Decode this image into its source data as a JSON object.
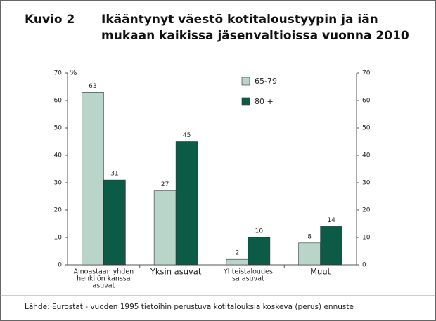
{
  "chart_data": {
    "type": "bar",
    "figure_label": "Kuvio 2",
    "title": [
      "Ikääntynyt väestö kotitaloustyypin ja iän",
      "mukaan kaikissa jäsenvaltioissa vuonna 2010"
    ],
    "y_unit": "%",
    "categories": [
      [
        "Ainoastaan yhden",
        "henkilön kanssa",
        "asuvat"
      ],
      [
        "Yksin asuvat"
      ],
      [
        "Yhteistaloudes",
        "sa asuvat"
      ],
      [
        "Muut"
      ]
    ],
    "series": [
      {
        "name": "65-79",
        "color": "#b9d5ca",
        "values": [
          63,
          27,
          2,
          8
        ]
      },
      {
        "name": "80 +",
        "color": "#0c5b46",
        "values": [
          31,
          45,
          10,
          14
        ]
      }
    ],
    "ylim": [
      0,
      70
    ],
    "yticks": [
      0,
      10,
      20,
      30,
      40,
      50,
      60,
      70
    ],
    "y2lim": [
      0,
      70
    ],
    "y2ticks": [
      0,
      10,
      20,
      30,
      40,
      50,
      60,
      70
    ],
    "source": "Lähde: Eurostat - vuoden 1995 tietoihin perustuva kotitalouksia koskeva (perus) ennuste"
  }
}
